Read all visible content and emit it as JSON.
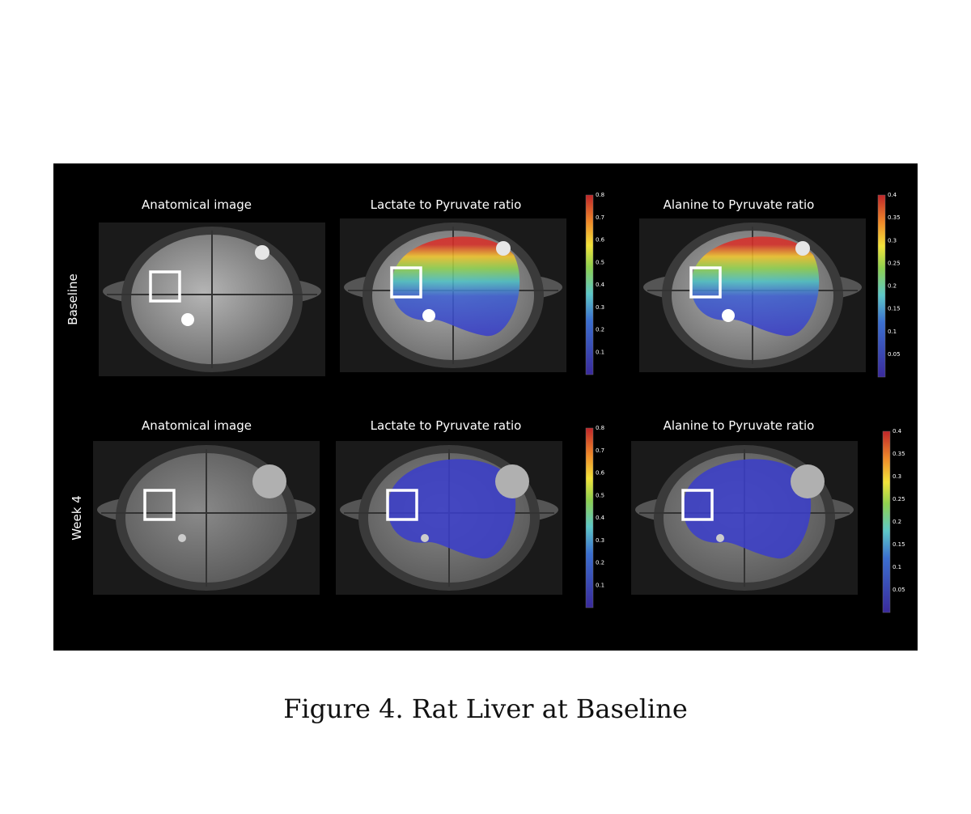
{
  "figure": {
    "rows": [
      {
        "label": "Baseline",
        "panels": [
          {
            "title": "Anatomical image"
          },
          {
            "title": "Lactate to Pyruvate ratio",
            "colorbar": {
              "ticks": [
                0.8,
                0.7,
                0.6,
                0.5,
                0.4,
                0.3,
                0.2,
                0.1
              ]
            }
          },
          {
            "title": "Alanine to Pyruvate ratio",
            "colorbar": {
              "ticks": [
                0.4,
                0.35,
                0.3,
                0.25,
                0.2,
                0.15,
                0.1,
                0.05
              ]
            }
          }
        ]
      },
      {
        "label": "Week 4",
        "panels": [
          {
            "title": "Anatomical image"
          },
          {
            "title": "Lactate to Pyruvate ratio",
            "colorbar": {
              "ticks": [
                0.8,
                0.7,
                0.6,
                0.5,
                0.4,
                0.3,
                0.2,
                0.1
              ]
            }
          },
          {
            "title": "Alanine to Pyruvate ratio",
            "colorbar": {
              "ticks": [
                0.4,
                0.35,
                0.3,
                0.25,
                0.2,
                0.15,
                0.1,
                0.05
              ]
            }
          }
        ]
      }
    ],
    "caption": "Figure 4. Rat Liver at Baseline"
  }
}
